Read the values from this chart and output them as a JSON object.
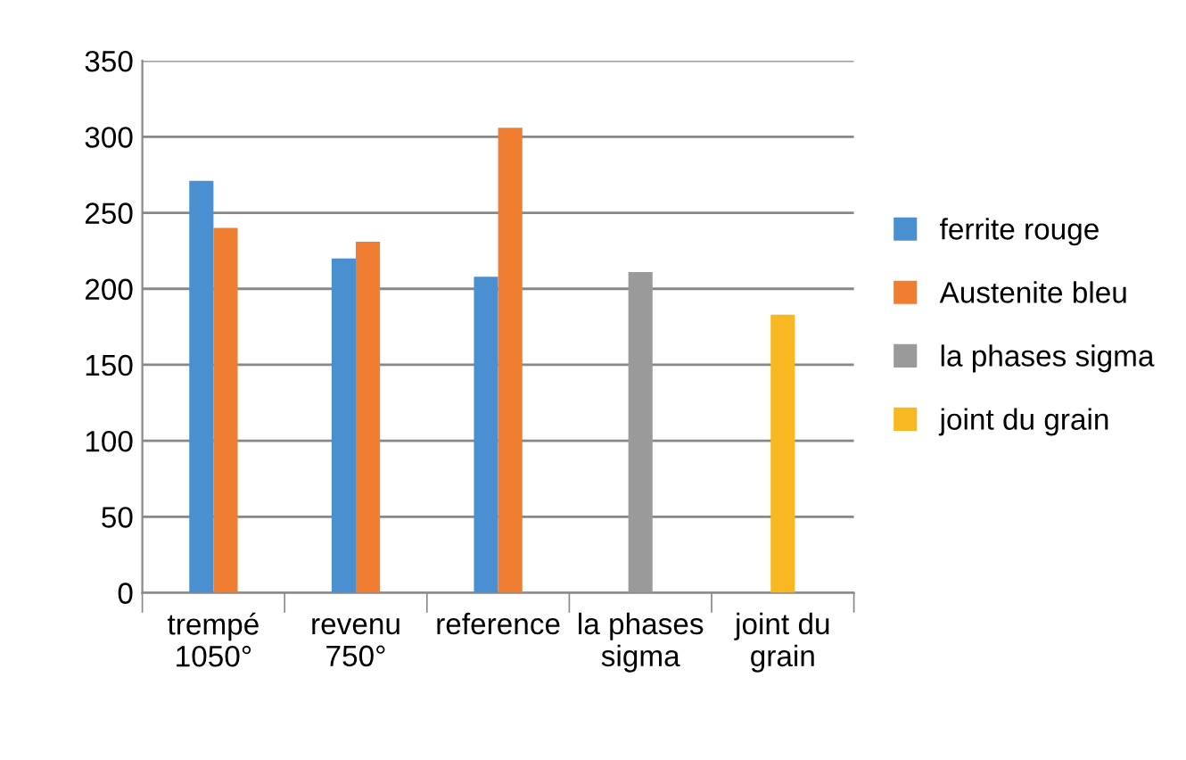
{
  "chart_data": {
    "type": "bar",
    "categories": [
      "trempé\n1050°",
      "revenu\n750°",
      "reference",
      "la phases\nsigma",
      "joint du\ngrain"
    ],
    "series": [
      {
        "name": "ferrite rouge",
        "color": "#4a90d0",
        "values": [
          271,
          220,
          208,
          null,
          null
        ]
      },
      {
        "name": "Austenite bleu",
        "color": "#ef7d32",
        "values": [
          240,
          231,
          306,
          null,
          null
        ]
      },
      {
        "name": "la phases sigma",
        "color": "#9a9a9a",
        "values": [
          null,
          null,
          null,
          211,
          null
        ]
      },
      {
        "name": "joint du grain",
        "color": "#f8b822",
        "values": [
          null,
          null,
          null,
          null,
          183
        ]
      }
    ],
    "ylim": [
      0,
      350
    ],
    "yticks": [
      0,
      50,
      100,
      150,
      200,
      250,
      300,
      350
    ],
    "grid": "y",
    "legend": "right"
  }
}
